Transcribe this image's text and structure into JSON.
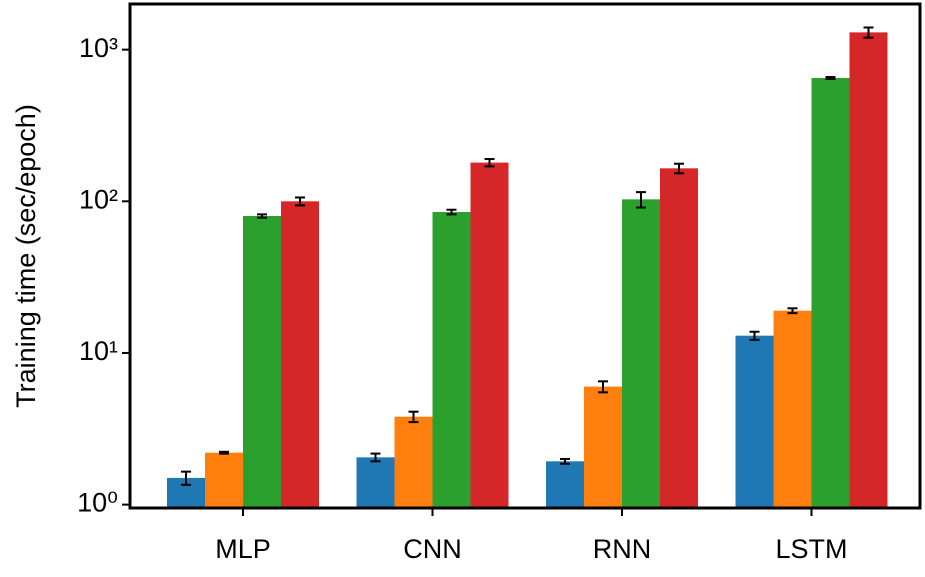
{
  "chart_data": {
    "type": "bar",
    "ylabel": "Training time (sec/epoch)",
    "categories": [
      "MLP",
      "CNN",
      "RNN",
      "LSTM"
    ],
    "series": [
      {
        "color": "#1f77b4",
        "values": [
          1.5,
          2.05,
          1.93,
          13
        ],
        "errors": [
          0.15,
          0.12,
          0.07,
          0.8
        ]
      },
      {
        "color": "#ff7f0e",
        "values": [
          2.2,
          3.8,
          6.0,
          19
        ],
        "errors": [
          0.03,
          0.3,
          0.5,
          0.7
        ]
      },
      {
        "color": "#2ca02c",
        "values": [
          80,
          85,
          103,
          650
        ],
        "errors": [
          2,
          3,
          12,
          10
        ]
      },
      {
        "color": "#d62728",
        "values": [
          100,
          180,
          165,
          1300
        ],
        "errors": [
          6,
          10,
          12,
          100
        ]
      }
    ],
    "log_y": true,
    "ylim": [
      0.95,
      2000
    ],
    "yticks": [
      {
        "value": 1,
        "label": "10⁰"
      },
      {
        "value": 10,
        "label": "10¹"
      },
      {
        "value": 100,
        "label": "10²"
      },
      {
        "value": 1000,
        "label": "10³"
      }
    ]
  }
}
